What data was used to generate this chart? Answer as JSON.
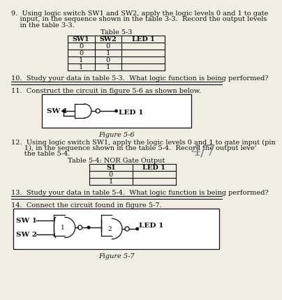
{
  "table53_title": "Table 5-3",
  "table53_headers": [
    "SW1",
    "SW2",
    "LED 1"
  ],
  "table53_rows": [
    [
      "0",
      "0",
      ""
    ],
    [
      "0",
      "1",
      ""
    ],
    [
      "1",
      "0",
      ""
    ],
    [
      "1",
      "1",
      ""
    ]
  ],
  "table54_title": "Table 5-4: NOR Gate Output",
  "table54_headers": [
    "S1",
    "LED 1"
  ],
  "table54_rows": [
    [
      "0",
      ""
    ],
    [
      "1",
      ""
    ]
  ],
  "q9_line1": "9.  Using logic switch SW1 and SW2, apply the logic levels 0 and 1 to gate",
  "q9_line2": "    input, in the sequence shown in the table 3-3.  Record the output levels",
  "q9_line3": "    in the table 3-3.",
  "q10": "10.  Study your data in table 5-3.  What logic function is being performed?",
  "q11": "11.  Construct the circuit in figure 5-6 as shown below.",
  "fig56_caption": "Figure 5-6",
  "q12_line1": "12.  Using logic switch SW1, apply the logic levels 0 and 1 to gate input (pin",
  "q12_line2": "      1), in the sequence shown in the table 5-4.  Record the output leve'",
  "q12_line3": "      the table 5-4.",
  "page_label": "4/7",
  "q13": "13.  Study your data in table 5-4.  What logic function is being performed?",
  "q14": "14.  Connect the circuit found in figure 5-7.",
  "fig57_caption": "Figure 5-7",
  "bg_color": "#f2ede3",
  "text_color": "#111111",
  "fig56_sw1": "SW 1",
  "fig56_led": "LED 1",
  "fig57_sw1": "SW 1",
  "fig57_sw2": "SW 2",
  "fig57_led": "LED 1"
}
